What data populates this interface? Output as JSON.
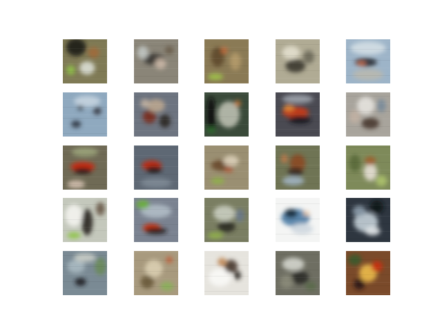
{
  "grid": {
    "rows": 5,
    "cols": 5,
    "tiles": [
      {
        "bg": "#7f7a55",
        "blobs": [
          [
            "#1f1e18",
            0.3,
            0.18,
            0.45,
            0.4
          ],
          [
            "#d9dcd2",
            0.55,
            0.65,
            0.35,
            0.3
          ],
          [
            "#8fbf4a",
            0.18,
            0.7,
            0.2,
            0.22
          ],
          [
            "#a06a3a",
            0.7,
            0.3,
            0.25,
            0.25
          ]
        ]
      },
      {
        "bg": "#8a8578",
        "blobs": [
          [
            "#3b3834",
            0.45,
            0.45,
            0.5,
            0.25
          ],
          [
            "#c9b6a6",
            0.6,
            0.55,
            0.25,
            0.25
          ],
          [
            "#bfc3c0",
            0.2,
            0.3,
            0.25,
            0.3
          ],
          [
            "#6a5d4c",
            0.8,
            0.25,
            0.2,
            0.2
          ]
        ]
      },
      {
        "bg": "#8a7a55",
        "blobs": [
          [
            "#5e4a2b",
            0.3,
            0.4,
            0.3,
            0.45
          ],
          [
            "#b39a6a",
            0.7,
            0.5,
            0.25,
            0.4
          ],
          [
            "#9fc24a",
            0.25,
            0.85,
            0.35,
            0.15
          ],
          [
            "#c46a3a",
            0.45,
            0.25,
            0.15,
            0.15
          ]
        ]
      },
      {
        "bg": "#b0ab94",
        "blobs": [
          [
            "#3e3a31",
            0.45,
            0.6,
            0.45,
            0.3
          ],
          [
            "#e2ddcc",
            0.35,
            0.3,
            0.4,
            0.3
          ],
          [
            "#6c6a5a",
            0.75,
            0.4,
            0.25,
            0.3
          ]
        ]
      },
      {
        "bg": "#9db4c8",
        "blobs": [
          [
            "#d3dde4",
            0.5,
            0.2,
            0.8,
            0.3
          ],
          [
            "#2c2f36",
            0.45,
            0.52,
            0.5,
            0.2
          ],
          [
            "#c06a4a",
            0.35,
            0.55,
            0.2,
            0.12
          ],
          [
            "#b8b8b0",
            0.5,
            0.8,
            0.7,
            0.25
          ]
        ]
      },
      {
        "bg": "#8fa9bf",
        "blobs": [
          [
            "#2e3440",
            0.3,
            0.72,
            0.22,
            0.16
          ],
          [
            "#3a3e46",
            0.78,
            0.42,
            0.18,
            0.18
          ],
          [
            "#c4d2de",
            0.55,
            0.2,
            0.6,
            0.25
          ],
          [
            "#45505c",
            0.4,
            0.35,
            0.15,
            0.12
          ]
        ]
      },
      {
        "bg": "#6d7480",
        "blobs": [
          [
            "#7a2a1e",
            0.35,
            0.55,
            0.3,
            0.3
          ],
          [
            "#2a2622",
            0.7,
            0.65,
            0.25,
            0.3
          ],
          [
            "#b9a58e",
            0.5,
            0.3,
            0.4,
            0.3
          ],
          [
            "#c0b0a0",
            0.25,
            0.25,
            0.2,
            0.2
          ]
        ]
      },
      {
        "bg": "#3a4a3a",
        "blobs": [
          [
            "#b8bcae",
            0.55,
            0.5,
            0.5,
            0.6
          ],
          [
            "#111211",
            0.15,
            0.5,
            0.2,
            0.8
          ],
          [
            "#2e6a2e",
            0.15,
            0.85,
            0.2,
            0.15
          ],
          [
            "#c47a3a",
            0.75,
            0.25,
            0.15,
            0.15
          ]
        ]
      },
      {
        "bg": "#4a4a52",
        "blobs": [
          [
            "#c83a14",
            0.45,
            0.45,
            0.6,
            0.25
          ],
          [
            "#1a1a1e",
            0.55,
            0.62,
            0.5,
            0.18
          ],
          [
            "#e08a3a",
            0.3,
            0.35,
            0.25,
            0.15
          ],
          [
            "#9aa0a8",
            0.5,
            0.15,
            0.7,
            0.2
          ]
        ]
      },
      {
        "bg": "#a8a49c",
        "blobs": [
          [
            "#e4e2dc",
            0.45,
            0.3,
            0.4,
            0.4
          ],
          [
            "#4a3a30",
            0.55,
            0.7,
            0.4,
            0.25
          ],
          [
            "#c0b0a2",
            0.2,
            0.55,
            0.25,
            0.3
          ],
          [
            "#7a8a9a",
            0.8,
            0.3,
            0.2,
            0.3
          ]
        ]
      },
      {
        "bg": "#6f6a55",
        "blobs": [
          [
            "#c8260e",
            0.45,
            0.48,
            0.55,
            0.22
          ],
          [
            "#2a1a14",
            0.45,
            0.58,
            0.4,
            0.14
          ],
          [
            "#9aa27a",
            0.5,
            0.15,
            0.6,
            0.2
          ],
          [
            "#d4c0b0",
            0.3,
            0.88,
            0.4,
            0.18
          ]
        ]
      },
      {
        "bg": "#5e6874",
        "blobs": [
          [
            "#c0280e",
            0.4,
            0.45,
            0.45,
            0.22
          ],
          [
            "#1e1a1a",
            0.45,
            0.55,
            0.35,
            0.15
          ],
          [
            "#7d8894",
            0.5,
            0.85,
            0.7,
            0.22
          ]
        ]
      },
      {
        "bg": "#9a8f72",
        "blobs": [
          [
            "#6a4a2a",
            0.4,
            0.45,
            0.5,
            0.25
          ],
          [
            "#d9cdb6",
            0.6,
            0.35,
            0.35,
            0.25
          ],
          [
            "#8fb04a",
            0.3,
            0.8,
            0.3,
            0.15
          ],
          [
            "#b05a3a",
            0.55,
            0.55,
            0.2,
            0.12
          ]
        ]
      },
      {
        "bg": "#6f7454",
        "blobs": [
          [
            "#8a4a22",
            0.5,
            0.4,
            0.35,
            0.4
          ],
          [
            "#3a2e22",
            0.45,
            0.6,
            0.35,
            0.2
          ],
          [
            "#9fb2c0",
            0.4,
            0.8,
            0.5,
            0.2
          ],
          [
            "#c07a4a",
            0.2,
            0.3,
            0.15,
            0.2
          ]
        ]
      },
      {
        "bg": "#7e8a5a",
        "blobs": [
          [
            "#e4ddd2",
            0.55,
            0.6,
            0.3,
            0.4
          ],
          [
            "#a0602a",
            0.55,
            0.35,
            0.25,
            0.2
          ],
          [
            "#5a6a3a",
            0.2,
            0.4,
            0.25,
            0.4
          ],
          [
            "#aac06a",
            0.8,
            0.8,
            0.25,
            0.25
          ]
        ]
      },
      {
        "bg": "#c4c8bc",
        "blobs": [
          [
            "#f2f2ee",
            0.25,
            0.4,
            0.4,
            0.5
          ],
          [
            "#2a2622",
            0.55,
            0.55,
            0.25,
            0.6
          ],
          [
            "#8fc64a",
            0.25,
            0.85,
            0.3,
            0.15
          ],
          [
            "#6a5a4a",
            0.85,
            0.25,
            0.2,
            0.3
          ]
        ]
      },
      {
        "bg": "#7a8290",
        "blobs": [
          [
            "#b0bcc6",
            0.5,
            0.3,
            0.7,
            0.3
          ],
          [
            "#c8300e",
            0.4,
            0.68,
            0.4,
            0.2
          ],
          [
            "#1e1a1a",
            0.5,
            0.75,
            0.5,
            0.14
          ],
          [
            "#6ab03a",
            0.2,
            0.15,
            0.3,
            0.2
          ]
        ]
      },
      {
        "bg": "#7a7e62",
        "blobs": [
          [
            "#c8ccbe",
            0.45,
            0.35,
            0.5,
            0.35
          ],
          [
            "#2e2a22",
            0.5,
            0.65,
            0.4,
            0.25
          ],
          [
            "#8fb04a",
            0.25,
            0.85,
            0.35,
            0.15
          ],
          [
            "#6a7a8a",
            0.8,
            0.4,
            0.2,
            0.3
          ]
        ]
      },
      {
        "bg": "#f4f5f4",
        "blobs": [
          [
            "#4e7ea6",
            0.45,
            0.45,
            0.65,
            0.4
          ],
          [
            "#1a2a3a",
            0.35,
            0.35,
            0.3,
            0.2
          ],
          [
            "#cfd8e0",
            0.6,
            0.7,
            0.5,
            0.25
          ],
          [
            "#e8c8a8",
            0.7,
            0.35,
            0.15,
            0.12
          ]
        ]
      },
      {
        "bg": "#2e3640",
        "blobs": [
          [
            "#c0ccd4",
            0.45,
            0.55,
            0.55,
            0.45
          ],
          [
            "#101418",
            0.7,
            0.2,
            0.3,
            0.3
          ],
          [
            "#8a9aa8",
            0.3,
            0.3,
            0.3,
            0.25
          ],
          [
            "#e0e4e6",
            0.6,
            0.75,
            0.35,
            0.2
          ]
        ]
      },
      {
        "bg": "#7a8a94",
        "blobs": [
          [
            "#1e2024",
            0.4,
            0.7,
            0.25,
            0.18
          ],
          [
            "#a8b8c0",
            0.3,
            0.35,
            0.4,
            0.3
          ],
          [
            "#6a8a5a",
            0.85,
            0.35,
            0.25,
            0.4
          ],
          [
            "#c8ccc6",
            0.5,
            0.15,
            0.5,
            0.2
          ]
        ]
      },
      {
        "bg": "#a89a7e",
        "blobs": [
          [
            "#d9cdb0",
            0.45,
            0.4,
            0.4,
            0.4
          ],
          [
            "#6a5a3a",
            0.3,
            0.7,
            0.3,
            0.3
          ],
          [
            "#8ab05a",
            0.75,
            0.8,
            0.3,
            0.2
          ],
          [
            "#c0603a",
            0.8,
            0.2,
            0.15,
            0.15
          ]
        ]
      },
      {
        "bg": "#e6e4de",
        "blobs": [
          [
            "#f8f8f6",
            0.35,
            0.6,
            0.5,
            0.4
          ],
          [
            "#4a3a30",
            0.6,
            0.35,
            0.3,
            0.3
          ],
          [
            "#c08a5a",
            0.4,
            0.25,
            0.2,
            0.2
          ],
          [
            "#2a2622",
            0.75,
            0.55,
            0.15,
            0.2
          ]
        ]
      },
      {
        "bg": "#6e6e62",
        "blobs": [
          [
            "#d0d2ca",
            0.4,
            0.3,
            0.5,
            0.3
          ],
          [
            "#2a2a26",
            0.55,
            0.6,
            0.4,
            0.3
          ],
          [
            "#8a8a7a",
            0.25,
            0.7,
            0.3,
            0.3
          ],
          [
            "#5a6a4a",
            0.8,
            0.8,
            0.25,
            0.2
          ]
        ]
      },
      {
        "bg": "#7a4a2a",
        "blobs": [
          [
            "#e8b84a",
            0.5,
            0.5,
            0.4,
            0.4
          ],
          [
            "#c8300e",
            0.7,
            0.35,
            0.25,
            0.25
          ],
          [
            "#3a5a2a",
            0.2,
            0.2,
            0.3,
            0.25
          ],
          [
            "#2a1a14",
            0.3,
            0.75,
            0.25,
            0.25
          ]
        ]
      }
    ]
  }
}
